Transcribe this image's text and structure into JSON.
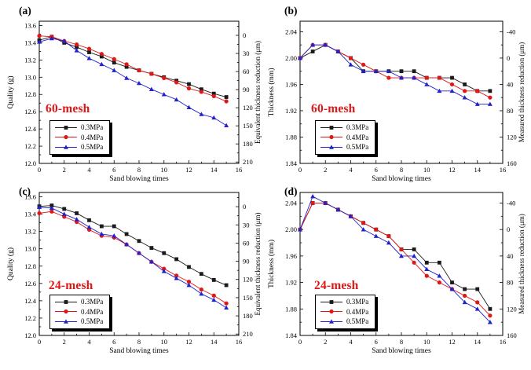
{
  "colors": {
    "series_black": "#1a1a1a",
    "series_red": "#e11717",
    "series_blue": "#2222cc",
    "mesh_label_red": "#e11717",
    "axis": "#000000",
    "background": "#ffffff"
  },
  "chart_data": [
    {
      "id": "a",
      "type": "line",
      "panel_label": "(a)",
      "mesh_label": "60-mesh",
      "xlabel": "Sand blowing times",
      "ylabel_left": "Quality (g)",
      "ylabel_right": "Equivalent thickness reduction (μm)",
      "legend_position": "lower-left",
      "grid": false,
      "x_range": [
        0,
        16
      ],
      "x_ticks": [
        0,
        2,
        4,
        6,
        8,
        10,
        12,
        14,
        16
      ],
      "x_minor_step": 1,
      "y_left_range": [
        12.0,
        13.65
      ],
      "y_left_tick_vals": [
        12.0,
        12.2,
        12.4,
        12.6,
        12.8,
        13.0,
        13.2,
        13.4,
        13.6
      ],
      "y_left_tick_labels": [
        "12.0",
        "12.2",
        "12.4",
        "12.6",
        "12.8",
        "13.0",
        "13.2",
        "13.4",
        "13.6"
      ],
      "y_right_tick_vals": [
        0,
        30,
        60,
        90,
        120,
        150,
        180,
        210
      ],
      "y_right_tick_labels": [
        "0",
        "30",
        "60",
        "90",
        "120",
        "150",
        "180",
        "210"
      ],
      "right_map": {
        "left_at_zero": 13.486,
        "left_per_unit": -0.007
      },
      "x": [
        0,
        1,
        2,
        3,
        4,
        5,
        6,
        7,
        8,
        9,
        10,
        11,
        12,
        13,
        14,
        15
      ],
      "series": [
        {
          "name": "0.3MPa",
          "marker": "square",
          "color": "#1a1a1a",
          "values": [
            13.43,
            13.47,
            13.4,
            13.35,
            13.29,
            13.24,
            13.17,
            13.12,
            13.08,
            13.04,
            13.0,
            12.96,
            12.92,
            12.86,
            12.81,
            12.77
          ]
        },
        {
          "name": "0.4MPa",
          "marker": "circle",
          "color": "#e11717",
          "values": [
            13.48,
            13.47,
            13.42,
            13.38,
            13.33,
            13.27,
            13.21,
            13.15,
            13.08,
            13.04,
            12.99,
            12.94,
            12.87,
            12.83,
            12.78,
            12.72
          ]
        },
        {
          "name": "0.5MPa",
          "marker": "triangle",
          "color": "#2222cc",
          "values": [
            13.41,
            13.45,
            13.42,
            13.31,
            13.22,
            13.15,
            13.08,
            12.99,
            12.93,
            12.86,
            12.8,
            12.74,
            12.65,
            12.57,
            12.53,
            12.44
          ]
        }
      ]
    },
    {
      "id": "b",
      "type": "line",
      "panel_label": "(b)",
      "mesh_label": "60-mesh",
      "xlabel": "Sand blowing times",
      "ylabel_left": "Thickness (mm)",
      "ylabel_right": "Measured thickness reduction (μm)",
      "legend_position": "lower-left",
      "grid": false,
      "x_range": [
        0,
        16
      ],
      "x_ticks": [
        0,
        2,
        4,
        6,
        8,
        10,
        12,
        14,
        16
      ],
      "x_minor_step": 1,
      "y_left_range": [
        1.84,
        2.056
      ],
      "y_left_tick_vals": [
        1.84,
        1.88,
        1.92,
        1.96,
        2.0,
        2.04
      ],
      "y_left_tick_labels": [
        "1.84",
        "1.88",
        "1.92",
        "1.96",
        "2.00",
        "2.04"
      ],
      "y_right_tick_vals": [
        -40,
        0,
        40,
        80,
        120,
        160
      ],
      "y_right_tick_labels": [
        "-40",
        "0",
        "40",
        "80",
        "120",
        "160"
      ],
      "right_map": {
        "left_at_zero": 2.0,
        "left_per_unit": -0.001
      },
      "x": [
        0,
        1,
        2,
        3,
        4,
        5,
        6,
        7,
        8,
        9,
        10,
        11,
        12,
        13,
        14,
        15
      ],
      "series": [
        {
          "name": "0.3MPa",
          "marker": "square",
          "color": "#1a1a1a",
          "values": [
            2.0,
            2.01,
            2.02,
            2.01,
            2.0,
            1.98,
            1.98,
            1.98,
            1.98,
            1.98,
            1.97,
            1.97,
            1.97,
            1.96,
            1.95,
            1.95
          ]
        },
        {
          "name": "0.4MPa",
          "marker": "circle",
          "color": "#e11717",
          "values": [
            2.0,
            2.02,
            2.02,
            2.01,
            2.0,
            1.99,
            1.98,
            1.97,
            1.97,
            1.97,
            1.97,
            1.97,
            1.96,
            1.95,
            1.95,
            1.94
          ]
        },
        {
          "name": "0.5MPa",
          "marker": "triangle",
          "color": "#2222cc",
          "values": [
            2.0,
            2.02,
            2.02,
            2.01,
            1.99,
            1.98,
            1.98,
            1.98,
            1.97,
            1.97,
            1.96,
            1.95,
            1.95,
            1.94,
            1.93,
            1.93
          ]
        }
      ]
    },
    {
      "id": "c",
      "type": "line",
      "panel_label": "(c)",
      "mesh_label": "24-mesh",
      "xlabel": "Sand blowing times",
      "ylabel_left": "Quality (g)",
      "ylabel_right": "Equivalent thickness reduction (μm)",
      "legend_position": "lower-left",
      "grid": false,
      "x_range": [
        0,
        16
      ],
      "x_ticks": [
        0,
        2,
        4,
        6,
        8,
        10,
        12,
        14,
        16
      ],
      "x_minor_step": 1,
      "y_left_range": [
        12.0,
        13.65
      ],
      "y_left_tick_vals": [
        12.0,
        12.2,
        12.4,
        12.6,
        12.8,
        13.0,
        13.2,
        13.4,
        13.6
      ],
      "y_left_tick_labels": [
        "12.0",
        "12.2",
        "12.4",
        "12.6",
        "12.8",
        "13.0",
        "13.2",
        "13.4",
        "13.6"
      ],
      "y_right_tick_vals": [
        0,
        30,
        60,
        90,
        120,
        150,
        180,
        210
      ],
      "y_right_tick_labels": [
        "0",
        "30",
        "60",
        "90",
        "120",
        "150",
        "180",
        "210"
      ],
      "right_map": {
        "left_at_zero": 13.486,
        "left_per_unit": -0.007
      },
      "x": [
        0,
        1,
        2,
        3,
        4,
        5,
        6,
        7,
        8,
        9,
        10,
        11,
        12,
        13,
        14,
        15
      ],
      "series": [
        {
          "name": "0.3MPa",
          "marker": "square",
          "color": "#1a1a1a",
          "values": [
            13.49,
            13.5,
            13.46,
            13.41,
            13.33,
            13.26,
            13.26,
            13.17,
            13.09,
            13.01,
            12.95,
            12.88,
            12.79,
            12.71,
            12.64,
            12.58
          ]
        },
        {
          "name": "0.4MPa",
          "marker": "circle",
          "color": "#e11717",
          "values": [
            13.41,
            13.43,
            13.37,
            13.31,
            13.22,
            13.15,
            13.13,
            13.05,
            12.95,
            12.85,
            12.77,
            12.69,
            12.62,
            12.53,
            12.46,
            12.37
          ]
        },
        {
          "name": "0.5MPa",
          "marker": "triangle",
          "color": "#2222cc",
          "values": [
            13.48,
            13.47,
            13.4,
            13.34,
            13.25,
            13.17,
            13.15,
            13.05,
            12.95,
            12.85,
            12.74,
            12.66,
            12.58,
            12.48,
            12.41,
            12.32
          ]
        }
      ]
    },
    {
      "id": "d",
      "type": "line",
      "panel_label": "(d)",
      "mesh_label": "24-mesh",
      "xlabel": "Sand blowing times",
      "ylabel_left": "Thickness (mm)",
      "ylabel_right": "Measured thickness reduction (μm)",
      "legend_position": "lower-left",
      "grid": false,
      "x_range": [
        0,
        16
      ],
      "x_ticks": [
        0,
        2,
        4,
        6,
        8,
        10,
        12,
        14,
        16
      ],
      "x_minor_step": 1,
      "y_left_range": [
        1.84,
        2.056
      ],
      "y_left_tick_vals": [
        1.84,
        1.88,
        1.92,
        1.96,
        2.0,
        2.04
      ],
      "y_left_tick_labels": [
        "1.84",
        "1.88",
        "1.92",
        "1.96",
        "2.00",
        "2.04"
      ],
      "y_right_tick_vals": [
        -40,
        0,
        40,
        80,
        120,
        160
      ],
      "y_right_tick_labels": [
        "-40",
        "0",
        "40",
        "80",
        "120",
        "160"
      ],
      "right_map": {
        "left_at_zero": 2.0,
        "left_per_unit": -0.001
      },
      "x": [
        0,
        1,
        2,
        3,
        4,
        5,
        6,
        7,
        8,
        9,
        10,
        11,
        12,
        13,
        14,
        15
      ],
      "series": [
        {
          "name": "0.3MPa",
          "marker": "square",
          "color": "#1a1a1a",
          "values": [
            2.0,
            2.04,
            2.04,
            2.03,
            2.02,
            2.01,
            2.0,
            1.99,
            1.97,
            1.97,
            1.95,
            1.95,
            1.92,
            1.91,
            1.91,
            1.88
          ]
        },
        {
          "name": "0.4MPa",
          "marker": "circle",
          "color": "#e11717",
          "values": [
            2.0,
            2.04,
            2.04,
            2.03,
            2.02,
            2.01,
            2.0,
            1.99,
            1.97,
            1.95,
            1.93,
            1.92,
            1.91,
            1.9,
            1.89,
            1.87
          ]
        },
        {
          "name": "0.5MPa",
          "marker": "triangle",
          "color": "#2222cc",
          "values": [
            2.0,
            2.05,
            2.04,
            2.03,
            2.02,
            2.0,
            1.99,
            1.98,
            1.96,
            1.96,
            1.94,
            1.93,
            1.91,
            1.89,
            1.88,
            1.86
          ]
        }
      ]
    }
  ]
}
